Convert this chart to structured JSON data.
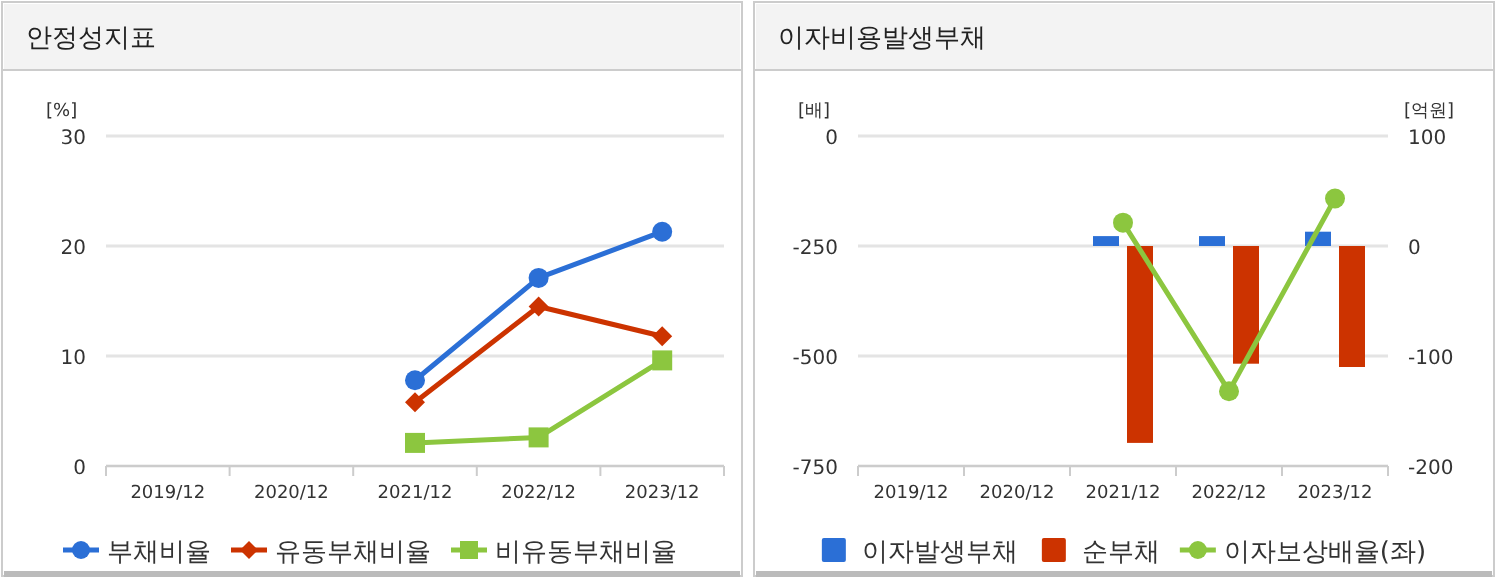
{
  "chart_data": [
    {
      "type": "line",
      "title": "안정성지표",
      "ylabel": "[%]",
      "categories": [
        "2019/12",
        "2020/12",
        "2021/12",
        "2022/12",
        "2023/12"
      ],
      "ylim": [
        0,
        30
      ],
      "yticks": [
        0,
        10,
        20,
        30
      ],
      "grid": "y",
      "legend": "bottom",
      "series": [
        {
          "name": "부채비율",
          "color": "#2b6fd6",
          "marker": "circle",
          "values": [
            null,
            null,
            7.8,
            17.1,
            21.3
          ]
        },
        {
          "name": "유동부채비율",
          "color": "#cc3300",
          "marker": "diamond",
          "values": [
            null,
            null,
            5.8,
            14.5,
            11.8
          ]
        },
        {
          "name": "비유동부채비율",
          "color": "#8cc63f",
          "marker": "square",
          "values": [
            null,
            null,
            2.1,
            2.6,
            9.6
          ]
        }
      ]
    },
    {
      "type": "bar",
      "title": "이자비용발생부채",
      "ylabel": "[배]",
      "y2label": "[억원]",
      "categories": [
        "2019/12",
        "2020/12",
        "2021/12",
        "2022/12",
        "2023/12"
      ],
      "ylim": [
        -750,
        0
      ],
      "yticks": [
        -750,
        -500,
        -250,
        0
      ],
      "y2lim": [
        -200,
        100
      ],
      "y2ticks": [
        -200,
        -100,
        0,
        100
      ],
      "grid": "y",
      "legend": "bottom",
      "series": [
        {
          "name": "이자발생부채",
          "axis": "y2",
          "color": "#2b6fd6",
          "values": [
            null,
            null,
            9,
            9,
            13
          ]
        },
        {
          "name": "순부채",
          "axis": "y2",
          "color": "#cc3300",
          "values": [
            null,
            null,
            -179,
            -107,
            -110
          ]
        },
        {
          "name": "이자보상배율(좌)",
          "type": "line",
          "axis": "y",
          "marker": "circle",
          "color": "#8cc63f",
          "values": [
            null,
            null,
            -197,
            -580,
            -142
          ]
        }
      ]
    }
  ]
}
